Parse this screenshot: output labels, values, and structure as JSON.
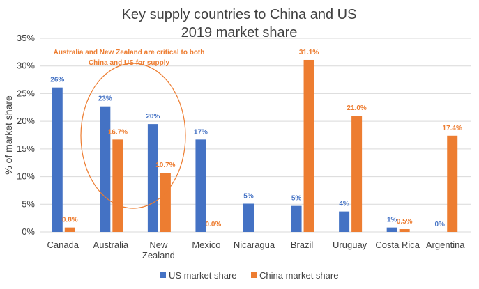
{
  "chart_data": {
    "type": "bar",
    "title": [
      "Key supply countries to China and US",
      "2019 market share"
    ],
    "ylabel": "% of market share",
    "xlabel": "",
    "ylim": [
      0,
      35
    ],
    "yticks": [
      "0%",
      "5%",
      "10%",
      "15%",
      "20%",
      "25%",
      "30%",
      "35%"
    ],
    "ytick_values": [
      0,
      5,
      10,
      15,
      20,
      25,
      30,
      35
    ],
    "grid": true,
    "legend_position": "bottom",
    "categories": [
      [
        "Canada"
      ],
      [
        "Australia"
      ],
      [
        "New",
        "Zealand"
      ],
      [
        "Mexico"
      ],
      [
        "Nicaragua"
      ],
      [
        "Brazil"
      ],
      [
        "Uruguay"
      ],
      [
        "Costa Rica"
      ],
      [
        "Argentina"
      ]
    ],
    "series": [
      {
        "name": "US market share",
        "color": "#4472C4",
        "values": [
          26.1,
          22.7,
          19.5,
          16.7,
          5.1,
          4.7,
          3.7,
          0.8,
          0
        ],
        "labels": [
          "26%",
          "23%",
          "20%",
          "17%",
          "5%",
          "5%",
          "4%",
          "1%",
          "0%"
        ]
      },
      {
        "name": "China market share",
        "color": "#ED7D31",
        "values": [
          0.8,
          16.7,
          10.7,
          0.0,
          null,
          31.1,
          21.0,
          0.5,
          17.4
        ],
        "labels": [
          "0.8%",
          "16.7%",
          "10.7%",
          "0.0%",
          "",
          "31.1%",
          "21.0%",
          "0.5%",
          "17.4%"
        ]
      }
    ],
    "annotation": {
      "lines": [
        "Australia and New Zealand are critical to both",
        "China and US for supply"
      ],
      "color": "#ED7D31"
    }
  }
}
